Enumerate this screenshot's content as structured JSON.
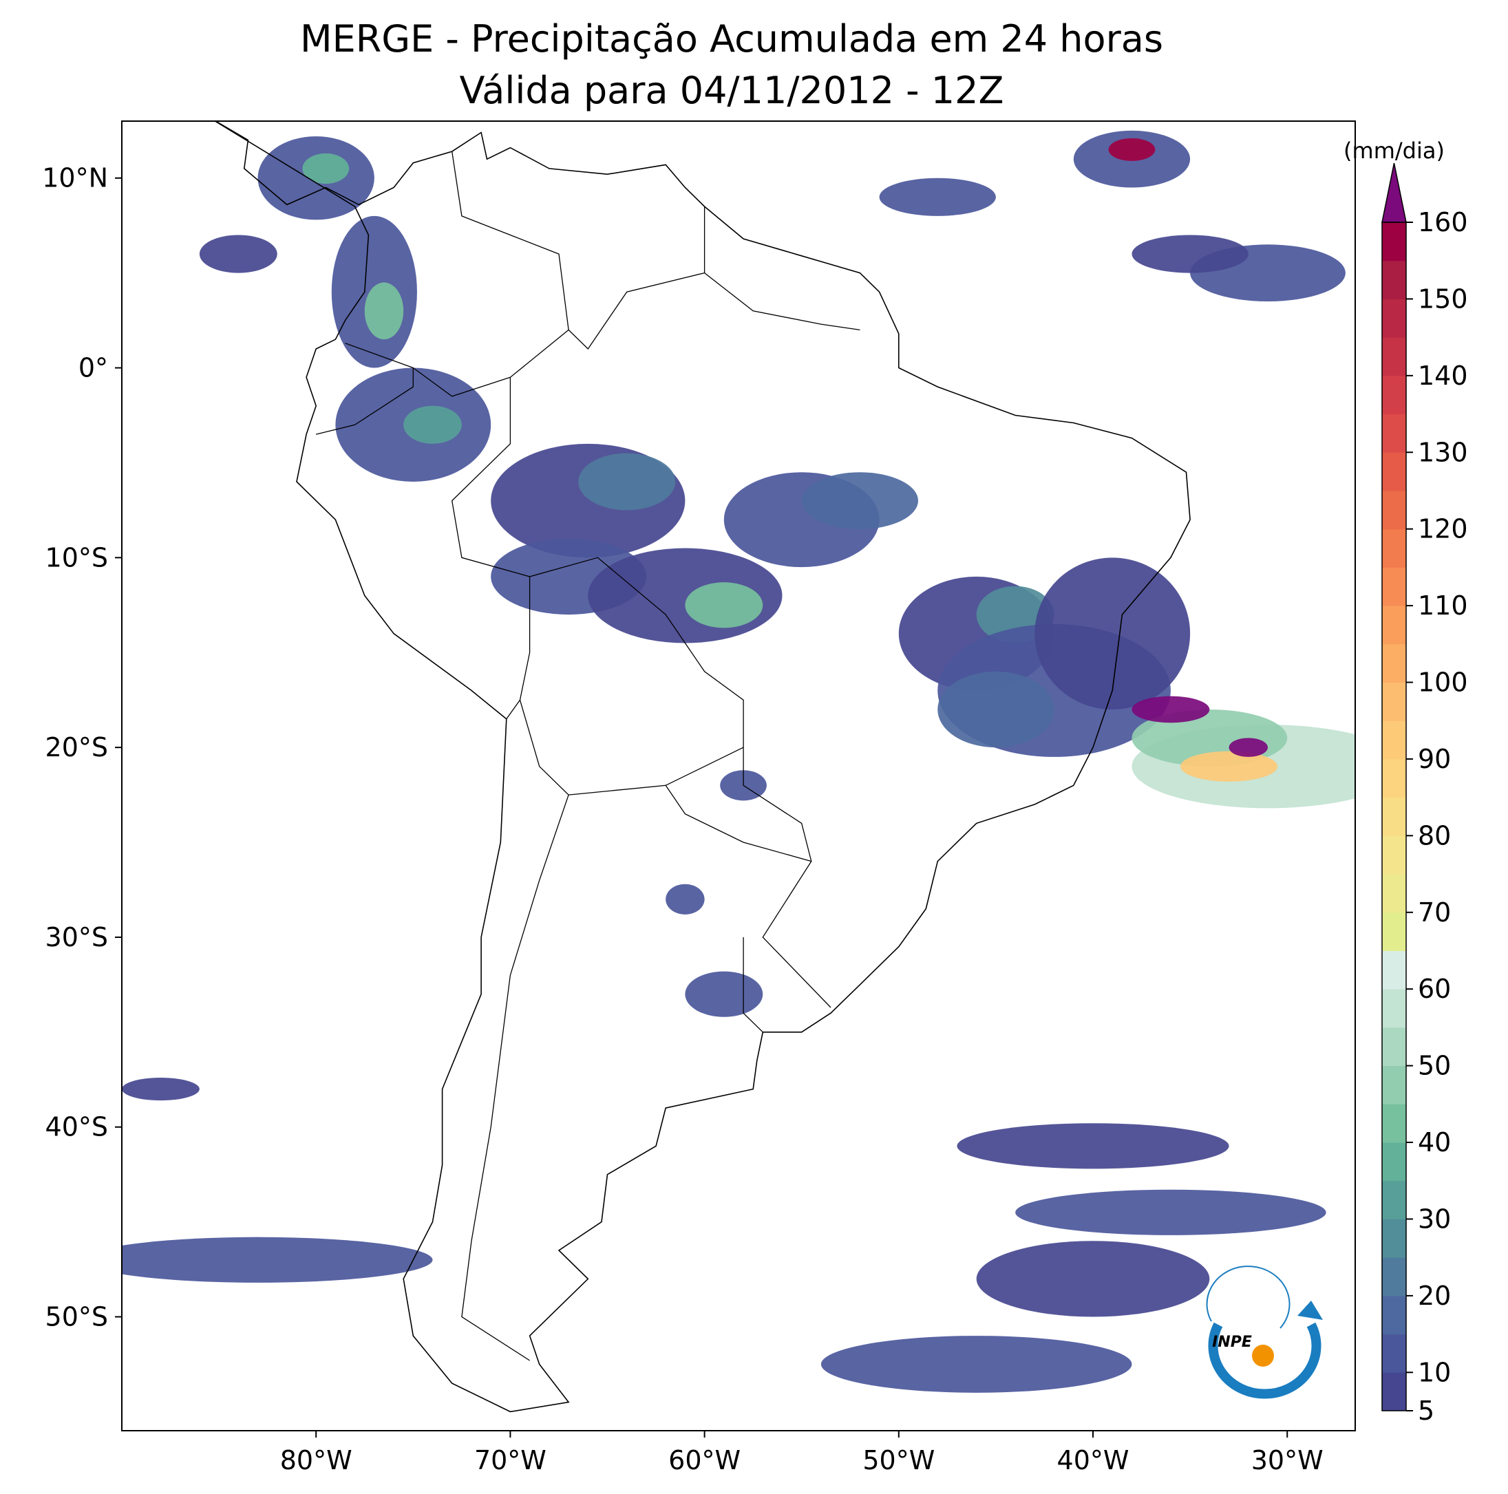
{
  "map": {
    "title": "MERGE - Precipitação Acumulada em 24 horas",
    "subtitle": "Válida para 04/11/2012 - 12Z",
    "xlim": [
      -90,
      -26.5
    ],
    "ylim": [
      -56,
      13
    ],
    "xticks": [
      {
        "value": -80,
        "label": "80°W"
      },
      {
        "value": -70,
        "label": "70°W"
      },
      {
        "value": -60,
        "label": "60°W"
      },
      {
        "value": -50,
        "label": "50°W"
      },
      {
        "value": -40,
        "label": "40°W"
      },
      {
        "value": -30,
        "label": "30°W"
      }
    ],
    "yticks": [
      {
        "value": 10,
        "label": "10°N"
      },
      {
        "value": 0,
        "label": "0°"
      },
      {
        "value": -10,
        "label": "10°S"
      },
      {
        "value": -20,
        "label": "20°S"
      },
      {
        "value": -30,
        "label": "30°S"
      },
      {
        "value": -40,
        "label": "40°S"
      },
      {
        "value": -50,
        "label": "50°S"
      }
    ],
    "colorbar": {
      "label": "(mm/dia)",
      "levels": [
        5,
        10,
        15,
        20,
        25,
        30,
        35,
        40,
        45,
        50,
        55,
        60,
        65,
        70,
        75,
        80,
        85,
        90,
        95,
        100,
        105,
        110,
        115,
        120,
        125,
        130,
        135,
        140,
        145,
        150,
        155,
        160
      ],
      "colors": [
        "#45468f",
        "#4b579b",
        "#4d699f",
        "#507b9d",
        "#528d9a",
        "#579f98",
        "#62b198",
        "#77c19e",
        "#92cdaf",
        "#abd8c1",
        "#c3e3d3",
        "#d8ede6",
        "#e2ee8e",
        "#ece98f",
        "#f4e58c",
        "#f9dd86",
        "#fcd47f",
        "#fdca78",
        "#fdbd70",
        "#fcae65",
        "#fa9e5c",
        "#f78d54",
        "#f27c4d",
        "#ec6b48",
        "#e55b47",
        "#dd4c48",
        "#d33f48",
        "#c73346",
        "#b92844",
        "#a91e42",
        "#9e0142"
      ],
      "extend_color": "#7b0a7c",
      "ticks": [
        5,
        10,
        20,
        30,
        40,
        50,
        60,
        70,
        80,
        90,
        100,
        110,
        120,
        130,
        140,
        150,
        160
      ]
    }
  },
  "logo": {
    "text": "INPE"
  }
}
